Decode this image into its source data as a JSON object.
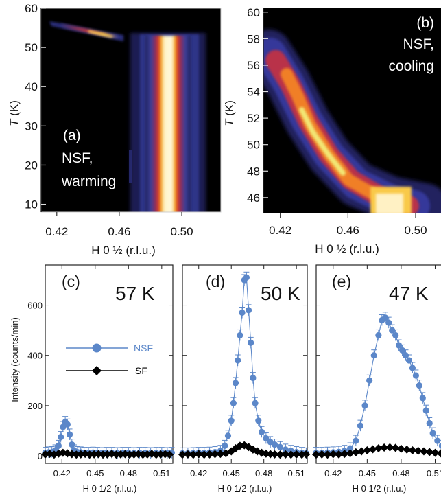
{
  "chart_data": [
    {
      "panel_label": "(a)",
      "type": "heatmap",
      "annotation_lines": [
        "NSF,",
        "warming"
      ],
      "xlabel": "H 0 ½ (r.l.u.)",
      "ylabel_italic": "T",
      "ylabel_unit": " (K)",
      "x_ticks": [
        0.42,
        0.46,
        0.5
      ],
      "x_tick_labels": [
        "0.42",
        "0.46",
        "0.50"
      ],
      "y_ticks": [
        10,
        20,
        30,
        40,
        50,
        60
      ],
      "y_tick_labels": [
        "10",
        "20",
        "30",
        "40",
        "50",
        "60"
      ],
      "xlim": [
        0.41,
        0.525
      ],
      "ylim": [
        8,
        60
      ],
      "features": [
        {
          "kind": "commensurate_peak",
          "h": 0.494,
          "t_range": [
            8,
            53
          ],
          "intensity": "high"
        },
        {
          "kind": "incommensurate_streak",
          "h_range": [
            0.425,
            0.46
          ],
          "t_range": [
            52.5,
            57
          ],
          "intensity": "medium"
        }
      ]
    },
    {
      "panel_label": "(b)",
      "type": "heatmap",
      "annotation_lines": [
        "NSF,",
        "cooling"
      ],
      "xlabel": "H 0 ½ (r.l.u.)",
      "ylabel_italic": "T",
      "ylabel_unit": " (K)",
      "x_ticks": [
        0.42,
        0.46,
        0.5
      ],
      "x_tick_labels": [
        "0.42",
        "0.46",
        "0.50"
      ],
      "y_ticks": [
        46,
        48,
        50,
        52,
        54,
        56,
        58,
        60
      ],
      "y_tick_labels": [
        "46",
        "48",
        "50",
        "52",
        "54",
        "56",
        "58",
        "60"
      ],
      "xlim": [
        0.41,
        0.515
      ],
      "ylim": [
        44.8,
        60.3
      ],
      "features": [
        {
          "kind": "incommensurate_ridge",
          "points": [
            [
              0.422,
              56.5
            ],
            [
              0.435,
              54.3
            ],
            [
              0.45,
              51.5
            ],
            [
              0.462,
              49.3
            ],
            [
              0.478,
              47.4
            ],
            [
              0.494,
              45.6
            ]
          ]
        },
        {
          "kind": "commensurate_peak",
          "h": 0.494,
          "t_range": [
            44.8,
            47.0
          ]
        }
      ]
    },
    {
      "panel_label": "(c)",
      "type": "scatter",
      "temperature": "57 K",
      "xlabel": "H 0 1/2 (r.l.u.)",
      "ylabel": "Intensity (counts/min)",
      "x_ticks": [
        0.42,
        0.45,
        0.48,
        0.51
      ],
      "x_tick_labels": [
        "0.42",
        "0.45",
        "0.48",
        "0.51"
      ],
      "y_ticks": [
        0,
        200,
        400,
        600
      ],
      "y_tick_labels": [
        "0",
        "200",
        "400",
        "600"
      ],
      "xlim": [
        0.405,
        0.52
      ],
      "ylim": [
        -30,
        760
      ],
      "legend": {
        "placement": "center-left"
      },
      "series": [
        {
          "name": "NSF",
          "color": "#5b87c9",
          "marker": "circle",
          "line": true,
          "x": [
            0.405,
            0.408,
            0.411,
            0.414,
            0.417,
            0.419,
            0.421,
            0.423,
            0.425,
            0.427,
            0.429,
            0.431,
            0.434,
            0.437,
            0.44,
            0.444,
            0.448,
            0.452,
            0.456,
            0.46,
            0.465,
            0.47,
            0.475,
            0.48,
            0.485,
            0.49,
            0.495,
            0.5,
            0.505,
            0.51,
            0.515,
            0.519
          ],
          "y": [
            12,
            14,
            15,
            22,
            40,
            75,
            115,
            135,
            125,
            85,
            45,
            22,
            15,
            14,
            12,
            12,
            13,
            12,
            11,
            12,
            12,
            11,
            12,
            12,
            11,
            12,
            12,
            11,
            12,
            12,
            11,
            12
          ]
        },
        {
          "name": "SF",
          "color": "#000000",
          "marker": "diamond",
          "line": true,
          "x": [
            0.405,
            0.409,
            0.413,
            0.417,
            0.421,
            0.425,
            0.429,
            0.433,
            0.437,
            0.441,
            0.445,
            0.449,
            0.453,
            0.457,
            0.461,
            0.465,
            0.469,
            0.473,
            0.477,
            0.481,
            0.485,
            0.489,
            0.493,
            0.497,
            0.501,
            0.505,
            0.509,
            0.513,
            0.517
          ],
          "y": [
            6,
            8,
            5,
            9,
            12,
            10,
            7,
            5,
            6,
            8,
            5,
            6,
            7,
            5,
            6,
            8,
            5,
            6,
            7,
            5,
            6,
            7,
            5,
            6,
            8,
            5,
            6,
            7,
            5
          ]
        }
      ]
    },
    {
      "panel_label": "(d)",
      "type": "scatter",
      "temperature": "50 K",
      "xlabel": "H 0 1/2 (r.l.u.)",
      "x_ticks": [
        0.42,
        0.45,
        0.48,
        0.51
      ],
      "x_tick_labels": [
        "0.42",
        "0.45",
        "0.48",
        "0.51"
      ],
      "xlim": [
        0.405,
        0.52
      ],
      "ylim": [
        -30,
        760
      ],
      "series": [
        {
          "name": "NSF",
          "color": "#5b87c9",
          "marker": "circle",
          "line": true,
          "x": [
            0.405,
            0.41,
            0.415,
            0.42,
            0.425,
            0.43,
            0.435,
            0.44,
            0.444,
            0.447,
            0.45,
            0.452,
            0.454,
            0.456,
            0.458,
            0.46,
            0.462,
            0.464,
            0.466,
            0.468,
            0.47,
            0.472,
            0.475,
            0.478,
            0.482,
            0.486,
            0.49,
            0.495,
            0.5,
            0.505,
            0.51,
            0.515,
            0.519
          ],
          "y": [
            10,
            10,
            11,
            12,
            12,
            13,
            15,
            20,
            40,
            80,
            140,
            210,
            290,
            380,
            480,
            570,
            700,
            710,
            580,
            450,
            310,
            210,
            140,
            95,
            70,
            55,
            45,
            35,
            25,
            20,
            15,
            12,
            10
          ]
        },
        {
          "name": "SF",
          "color": "#000000",
          "marker": "diamond",
          "line": true,
          "x": [
            0.405,
            0.41,
            0.415,
            0.42,
            0.425,
            0.43,
            0.435,
            0.44,
            0.445,
            0.45,
            0.454,
            0.458,
            0.462,
            0.466,
            0.47,
            0.474,
            0.478,
            0.482,
            0.486,
            0.49,
            0.495,
            0.5,
            0.505,
            0.51,
            0.515,
            0.519
          ],
          "y": [
            5,
            6,
            5,
            7,
            5,
            6,
            7,
            8,
            10,
            18,
            30,
            40,
            42,
            35,
            25,
            18,
            12,
            9,
            7,
            6,
            5,
            6,
            5,
            6,
            5,
            6
          ]
        }
      ]
    },
    {
      "panel_label": "(e)",
      "type": "scatter",
      "temperature": "47 K",
      "xlabel": "H 0 1/2 (r.l.u.)",
      "x_ticks": [
        0.42,
        0.45,
        0.48,
        0.51
      ],
      "x_tick_labels": [
        "0.42",
        "0.45",
        "0.48",
        "0.51"
      ],
      "xlim": [
        0.405,
        0.52
      ],
      "ylim": [
        -30,
        760
      ],
      "series": [
        {
          "name": "NSF",
          "color": "#5b87c9",
          "marker": "circle",
          "line": true,
          "x": [
            0.405,
            0.41,
            0.415,
            0.42,
            0.425,
            0.43,
            0.435,
            0.44,
            0.444,
            0.448,
            0.452,
            0.456,
            0.46,
            0.463,
            0.466,
            0.469,
            0.472,
            0.475,
            0.478,
            0.481,
            0.484,
            0.487,
            0.49,
            0.493,
            0.496,
            0.499,
            0.502,
            0.505,
            0.508,
            0.512,
            0.516,
            0.519
          ],
          "y": [
            12,
            12,
            13,
            14,
            16,
            20,
            30,
            60,
            120,
            200,
            300,
            400,
            480,
            540,
            550,
            530,
            500,
            480,
            440,
            420,
            400,
            380,
            350,
            320,
            280,
            230,
            180,
            130,
            90,
            60,
            40,
            30
          ]
        },
        {
          "name": "SF",
          "color": "#000000",
          "marker": "diamond",
          "line": true,
          "x": [
            0.405,
            0.41,
            0.415,
            0.42,
            0.425,
            0.43,
            0.435,
            0.44,
            0.445,
            0.45,
            0.455,
            0.46,
            0.465,
            0.47,
            0.475,
            0.48,
            0.485,
            0.49,
            0.495,
            0.5,
            0.505,
            0.51,
            0.515,
            0.519
          ],
          "y": [
            5,
            6,
            5,
            7,
            6,
            8,
            10,
            14,
            18,
            22,
            26,
            30,
            33,
            34,
            32,
            28,
            25,
            22,
            20,
            18,
            15,
            12,
            10,
            8
          ]
        }
      ]
    }
  ]
}
